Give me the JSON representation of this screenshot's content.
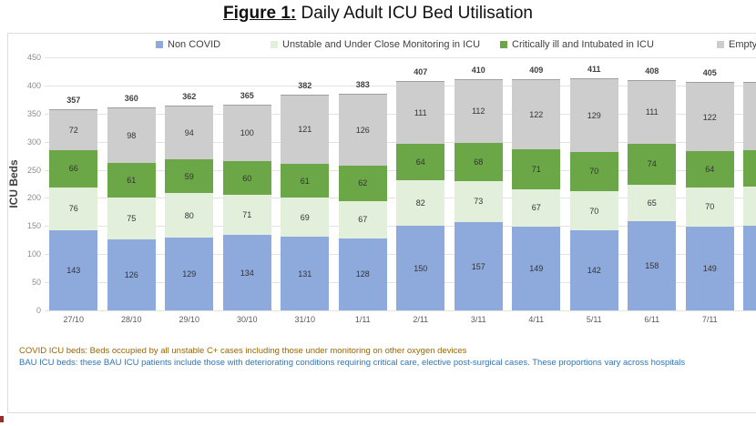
{
  "title": {
    "prefix": "Figure 1:",
    "text": " Daily Adult ICU Bed Utilisation"
  },
  "chart_data": {
    "type": "bar",
    "stacked": true,
    "title": "Figure 1: Daily Adult ICU Bed Utilisation",
    "categories": [
      "27/10",
      "28/10",
      "29/10",
      "30/10",
      "31/10",
      "1/11",
      "2/11",
      "3/11",
      "4/11",
      "5/11",
      "6/11",
      "7/11"
    ],
    "series": [
      {
        "name": "Non COVID",
        "color": "#8ea9db",
        "values": [
          143,
          126,
          129,
          134,
          131,
          128,
          150,
          157,
          149,
          142,
          158,
          149
        ]
      },
      {
        "name": "Unstable and Under Close Monitoring in ICU",
        "color": "#e2efda",
        "values": [
          76,
          75,
          80,
          71,
          69,
          67,
          82,
          73,
          67,
          70,
          65,
          70
        ]
      },
      {
        "name": "Critically ill and Intubated in ICU",
        "color": "#6ba647",
        "values": [
          66,
          61,
          59,
          60,
          61,
          62,
          64,
          68,
          71,
          70,
          74,
          64
        ]
      },
      {
        "name": "Empty",
        "color": "#cdcdcd",
        "values": [
          72,
          98,
          94,
          100,
          121,
          126,
          111,
          112,
          122,
          129,
          111,
          122
        ]
      }
    ],
    "totals": [
      357,
      360,
      362,
      365,
      382,
      383,
      407,
      410,
      409,
      411,
      408,
      405
    ],
    "ylabel": "ICU Beds",
    "ylim": [
      0,
      450
    ],
    "yticks": [
      0,
      50,
      100,
      150,
      200,
      250,
      300,
      350,
      400,
      450
    ],
    "grid": true,
    "legend_position": "top",
    "partial_bar": {
      "visible": true,
      "labels_visible": false,
      "estimated_values": [
        150,
        70,
        65,
        120
      ]
    }
  },
  "footnotes": [
    {
      "text": "COVID ICU beds: Beds occupied by all unstable C+ cases including those under monitoring on other oxygen devices",
      "color": "#9c6500"
    },
    {
      "text": "BAU ICU beds: these BAU ICU patients include those with deteriorating conditions requiring critical care, elective post-surgical cases. These proportions vary across hospitals",
      "color": "#2e75b6"
    }
  ]
}
